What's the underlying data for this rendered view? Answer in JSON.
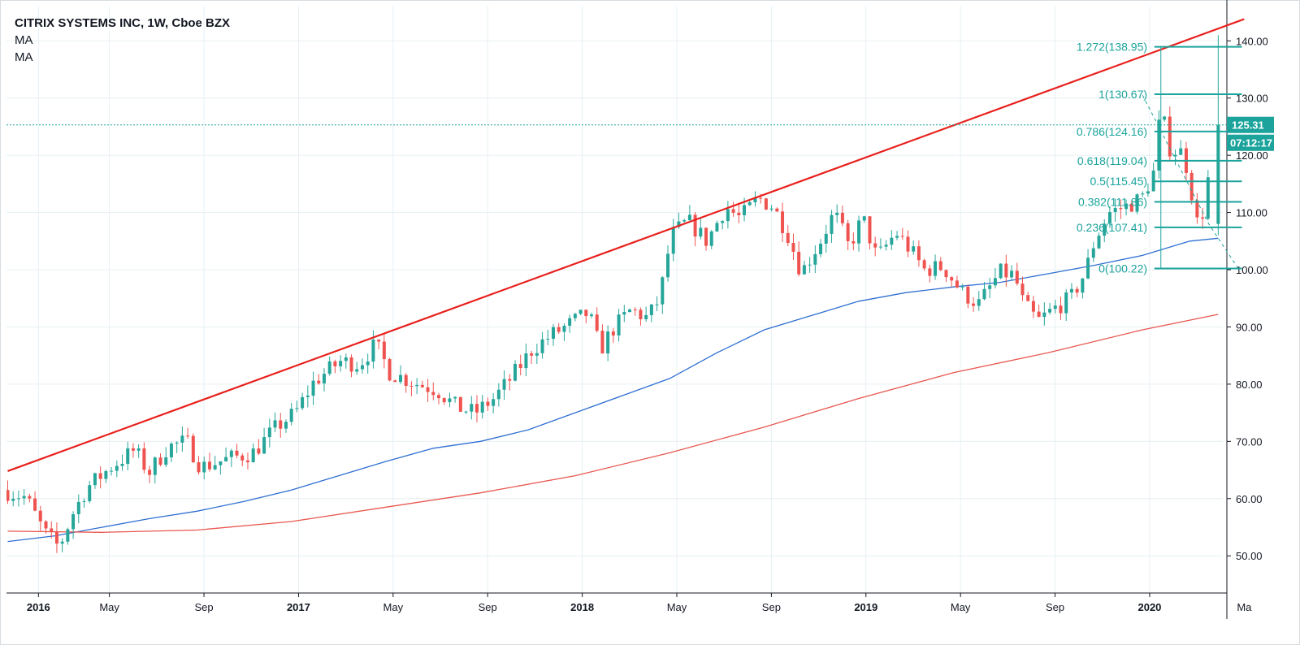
{
  "legend": {
    "title": "CITRIX SYSTEMS INC, 1W, Cboe BZX",
    "ma1": "MA",
    "ma2": "MA"
  },
  "chart_data": {
    "type": "candlestick",
    "title": "CITRIX SYSTEMS INC, 1W, Cboe BZX",
    "y_range": [
      43.5,
      146
    ],
    "y_ticks": [
      "50.00",
      "60.00",
      "70.00",
      "80.00",
      "90.00",
      "100.00",
      "110.00",
      "120.00",
      "130.00",
      "140.00"
    ],
    "x_range_months": [
      0,
      51
    ],
    "x_ticks": [
      {
        "label": "2016",
        "m": 1.3,
        "bold": true
      },
      {
        "label": "May",
        "m": 4.3
      },
      {
        "label": "Sep",
        "m": 8.3
      },
      {
        "label": "2017",
        "m": 12.3,
        "bold": true
      },
      {
        "label": "May",
        "m": 16.3
      },
      {
        "label": "Sep",
        "m": 20.3
      },
      {
        "label": "2018",
        "m": 24.3,
        "bold": true
      },
      {
        "label": "May",
        "m": 28.3
      },
      {
        "label": "Sep",
        "m": 32.3
      },
      {
        "label": "2019",
        "m": 36.3,
        "bold": true
      },
      {
        "label": "May",
        "m": 40.3
      },
      {
        "label": "Sep",
        "m": 44.3
      },
      {
        "label": "2020",
        "m": 48.3,
        "bold": true
      },
      {
        "label": "Ma",
        "m": 52.3
      }
    ],
    "price_path": [
      [
        0.0,
        61.5
      ],
      [
        1.0,
        60.2
      ],
      [
        1.8,
        54.0
      ],
      [
        2.4,
        51.5
      ],
      [
        3.0,
        57.5
      ],
      [
        3.6,
        62.0
      ],
      [
        4.6,
        65.5
      ],
      [
        5.6,
        68.5
      ],
      [
        6.2,
        64.5
      ],
      [
        7.0,
        69.0
      ],
      [
        7.8,
        70.0
      ],
      [
        8.4,
        65.5
      ],
      [
        9.6,
        67.0
      ],
      [
        10.6,
        68.0
      ],
      [
        11.6,
        72.5
      ],
      [
        12.4,
        75.0
      ],
      [
        13.2,
        80.5
      ],
      [
        14.3,
        84.0
      ],
      [
        15.1,
        83.5
      ],
      [
        15.8,
        87.0
      ],
      [
        16.4,
        82.0
      ],
      [
        17.6,
        80.0
      ],
      [
        18.4,
        79.0
      ],
      [
        19.2,
        76.0
      ],
      [
        20.0,
        75.0
      ],
      [
        20.8,
        77.5
      ],
      [
        21.6,
        81.5
      ],
      [
        22.4,
        86.0
      ],
      [
        23.2,
        88.5
      ],
      [
        24.0,
        90.5
      ],
      [
        24.8,
        92.5
      ],
      [
        25.3,
        86.0
      ],
      [
        25.8,
        89.5
      ],
      [
        26.6,
        93.0
      ],
      [
        27.3,
        91.5
      ],
      [
        27.8,
        95.0
      ],
      [
        28.3,
        106.0
      ],
      [
        29.0,
        108.5
      ],
      [
        29.8,
        105.0
      ],
      [
        30.6,
        111.0
      ],
      [
        31.2,
        109.0
      ],
      [
        32.0,
        112.5
      ],
      [
        32.6,
        111.0
      ],
      [
        33.2,
        106.5
      ],
      [
        33.8,
        99.5
      ],
      [
        34.6,
        105.0
      ],
      [
        35.2,
        110.0
      ],
      [
        35.8,
        104.0
      ],
      [
        36.4,
        109.0
      ],
      [
        37.0,
        102.0
      ],
      [
        37.8,
        106.5
      ],
      [
        38.4,
        103.5
      ],
      [
        39.0,
        100.0
      ],
      [
        39.8,
        100.5
      ],
      [
        40.6,
        96.0
      ],
      [
        41.3,
        94.0
      ],
      [
        42.2,
        99.5
      ],
      [
        42.8,
        99.0
      ],
      [
        43.2,
        94.0
      ],
      [
        43.8,
        91.0
      ],
      [
        44.6,
        93.5
      ],
      [
        45.2,
        95.0
      ],
      [
        45.8,
        99.5
      ],
      [
        46.2,
        105.0
      ],
      [
        46.8,
        110.0
      ],
      [
        47.5,
        111.0
      ],
      [
        48.2,
        112.5
      ],
      [
        48.7,
        117.0
      ],
      [
        49.0,
        128.0
      ],
      [
        49.4,
        121.0
      ],
      [
        49.9,
        120.5
      ],
      [
        50.2,
        116.5
      ],
      [
        50.5,
        108.0
      ],
      [
        50.9,
        111.0
      ],
      [
        51.2,
        125.3
      ]
    ],
    "moving_averages": [
      {
        "name": "MA",
        "color": "#2f6fd1",
        "points": [
          [
            0.0,
            52.5
          ],
          [
            2.0,
            53.5
          ],
          [
            4.0,
            55.0
          ],
          [
            6.0,
            56.5
          ],
          [
            8.0,
            57.8
          ],
          [
            10.0,
            59.5
          ],
          [
            12.0,
            61.5
          ],
          [
            14.0,
            64.0
          ],
          [
            16.0,
            66.5
          ],
          [
            18.0,
            68.8
          ],
          [
            20.0,
            70.0
          ],
          [
            22.0,
            72.0
          ],
          [
            24.0,
            75.0
          ],
          [
            26.0,
            78.0
          ],
          [
            28.0,
            81.0
          ],
          [
            30.0,
            85.5
          ],
          [
            32.0,
            89.5
          ],
          [
            34.0,
            92.0
          ],
          [
            36.0,
            94.5
          ],
          [
            38.0,
            96.0
          ],
          [
            40.0,
            97.0
          ],
          [
            42.0,
            97.8
          ],
          [
            44.0,
            99.3
          ],
          [
            46.0,
            100.8
          ],
          [
            48.0,
            102.5
          ],
          [
            50.0,
            105.0
          ],
          [
            51.2,
            105.5
          ]
        ]
      },
      {
        "name": "MA",
        "color": "#e8574f",
        "points": [
          [
            0.0,
            54.3
          ],
          [
            4.0,
            54.1
          ],
          [
            8.0,
            54.5
          ],
          [
            12.0,
            56.0
          ],
          [
            16.0,
            58.5
          ],
          [
            20.0,
            61.0
          ],
          [
            24.0,
            64.0
          ],
          [
            28.0,
            68.0
          ],
          [
            32.0,
            72.5
          ],
          [
            36.0,
            77.5
          ],
          [
            40.0,
            82.0
          ],
          [
            44.0,
            85.5
          ],
          [
            48.0,
            89.5
          ],
          [
            51.2,
            92.2
          ]
        ]
      }
    ],
    "trendline": {
      "color": "#e8201c",
      "from": [
        0.0,
        64.8
      ],
      "to": [
        52.3,
        143.8
      ]
    },
    "fibonacci": [
      {
        "label": "1.272(138.95)",
        "price": 138.95
      },
      {
        "label": "1(130.67)",
        "price": 130.67
      },
      {
        "label": "0.786(124.16)",
        "price": 124.16
      },
      {
        "label": "0.618(119.04)",
        "price": 119.04
      },
      {
        "label": "0.5(115.45)",
        "price": 115.45
      },
      {
        "label": "0.382(111.86)",
        "price": 111.86
      },
      {
        "label": "0.236(107.41)",
        "price": 107.41
      },
      {
        "label": "0(100.22)",
        "price": 100.22
      }
    ],
    "fib_range_months": [
      48.5,
      52.2
    ],
    "fib_label_anchor_month": 48.2,
    "current_price": {
      "value": 125.31,
      "label": "125.31",
      "countdown": "07:12:17"
    },
    "colors": {
      "up": "#26a69a",
      "down": "#ef5350",
      "fib": "#1ba39c",
      "grid": "#e7f0f4",
      "axis": "#131722"
    }
  }
}
